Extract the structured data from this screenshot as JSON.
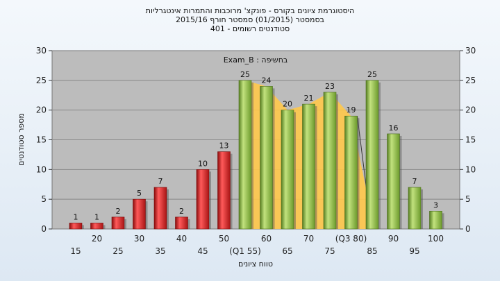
{
  "chart_data": {
    "type": "bar",
    "title_lines": [
      "היסטוגרמת ציונים בקורס - פונקצ' מרוכבות והתמרות אינטגרליות",
      "בסמסטר  (01/2015)  סמסטר חורף  2015/16",
      "סטודנטים רשומים - 401"
    ],
    "annotation": "בחשיפה : Exam_B",
    "xlabel": "טווח ציונים",
    "ylabel": "מספר סטודנטים",
    "ylim": [
      0,
      30
    ],
    "y_ticks": [
      0,
      5,
      10,
      15,
      20,
      25,
      30
    ],
    "grid": true,
    "categories": [
      "15",
      "20",
      "25",
      "30",
      "35",
      "40",
      "45",
      "50",
      "55",
      "60",
      "65",
      "70",
      "75",
      "80",
      "85",
      "90",
      "95",
      "100"
    ],
    "category_tick_labels": [
      "15",
      "20",
      "25",
      "30",
      "35",
      "40",
      "45",
      "50",
      "(Q1 55)",
      "60",
      "65",
      "70",
      "75",
      "(Q3 80)",
      "85",
      "90",
      "95",
      "100"
    ],
    "values": [
      1,
      1,
      2,
      5,
      7,
      2,
      10,
      13,
      25,
      24,
      20,
      21,
      23,
      19,
      25,
      16,
      7,
      3
    ],
    "bar_colors": [
      "#dd2222",
      "#dd2222",
      "#dd2222",
      "#dd2222",
      "#dd2222",
      "#dd2222",
      "#dd2222",
      "#dd2222",
      "#8fc24a",
      "#8fc24a",
      "#8fc24a",
      "#8fc24a",
      "#8fc24a",
      "#8fc24a",
      "#8fc24a",
      "#8fc24a",
      "#8fc24a",
      "#8fc24a"
    ],
    "iqr_band": {
      "from_category": "55",
      "to_category": "80",
      "color": "#ffc84a"
    }
  },
  "colors": {
    "plot_background": "#bcbcbc",
    "gridline": "#888888",
    "red_bar": "#dd2222",
    "green_bar": "#8fc24a",
    "band": "#ffc84a"
  }
}
